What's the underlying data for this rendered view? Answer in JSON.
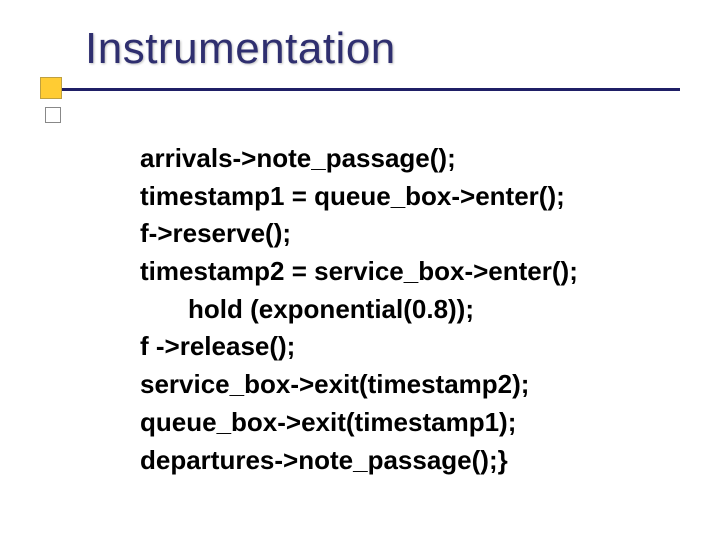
{
  "slide": {
    "title": "Instrumentation",
    "title_color": "#2f2f6f",
    "title_fontsize": 44,
    "underline_color": "#1f1f66",
    "accent_square_color": "#ffcc33",
    "code_fontsize": 26,
    "code_color": "#000000",
    "lines": {
      "l1": " arrivals->note_passage();",
      "l2": "timestamp1 = queue_box->enter();",
      "l3": "f->reserve();",
      "l4": "timestamp2 = service_box->enter();",
      "l5_indent": "hold (exponential(0.8));",
      "l6": "f ->release();",
      "l7": "service_box->exit(timestamp2);",
      "l8": "queue_box->exit(timestamp1);",
      "l9": "departures->note_passage();}"
    }
  }
}
